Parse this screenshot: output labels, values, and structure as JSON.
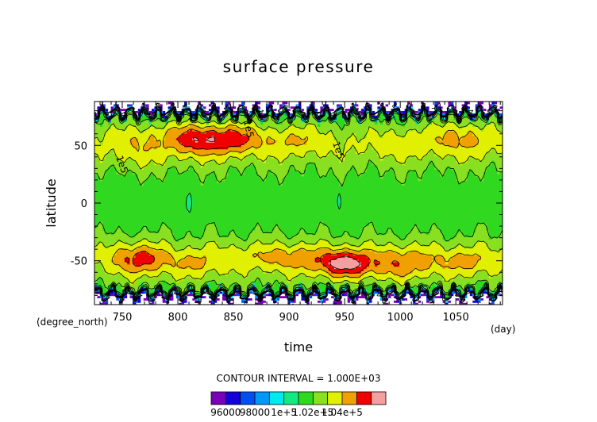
{
  "chart_data": {
    "type": "heatmap",
    "title": "surface pressure",
    "xlabel": "time",
    "ylabel": "latitude",
    "x_unit": "(day)",
    "y_unit": "(degree_north)",
    "xlim": [
      725,
      1092
    ],
    "ylim": [
      -88,
      88
    ],
    "x_ticks": [
      {
        "value": 750,
        "label": "750"
      },
      {
        "value": 800,
        "label": "800"
      },
      {
        "value": 850,
        "label": "850"
      },
      {
        "value": 900,
        "label": "900"
      },
      {
        "value": 950,
        "label": "950"
      },
      {
        "value": 1000,
        "label": "1000"
      },
      {
        "value": 1050,
        "label": "1050"
      }
    ],
    "y_ticks": [
      {
        "value": 50,
        "label": "50"
      },
      {
        "value": 0,
        "label": "0"
      },
      {
        "value": -50,
        "label": "-50"
      }
    ],
    "contour_labels": [
      "1e5",
      "1e5",
      "1e5"
    ],
    "contour_interval_text": "CONTOUR INTERVAL = 1.000E+03",
    "colorbar": {
      "levels": [
        95000,
        96000,
        97000,
        98000,
        99000,
        100000,
        101000,
        102000,
        103000,
        104000,
        105000
      ],
      "colors": [
        "#7a00b8",
        "#1400d8",
        "#0050f0",
        "#0098f8",
        "#00e8f0",
        "#14e880",
        "#30d820",
        "#88e020",
        "#e0f000",
        "#f0a000",
        "#f00000",
        "#f4a0a0"
      ],
      "tick_labels": [
        "96000",
        "98000",
        "1e+5",
        "1.02e+5",
        "1.04e+5"
      ]
    }
  }
}
